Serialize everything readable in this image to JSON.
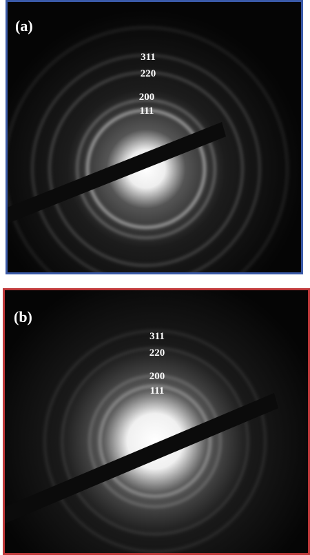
{
  "panels": [
    {
      "label": "(a)",
      "rings": [
        "311",
        "220",
        "200",
        "111"
      ]
    },
    {
      "label": "(b)",
      "rings": [
        "311",
        "220",
        "200",
        "111"
      ]
    }
  ]
}
